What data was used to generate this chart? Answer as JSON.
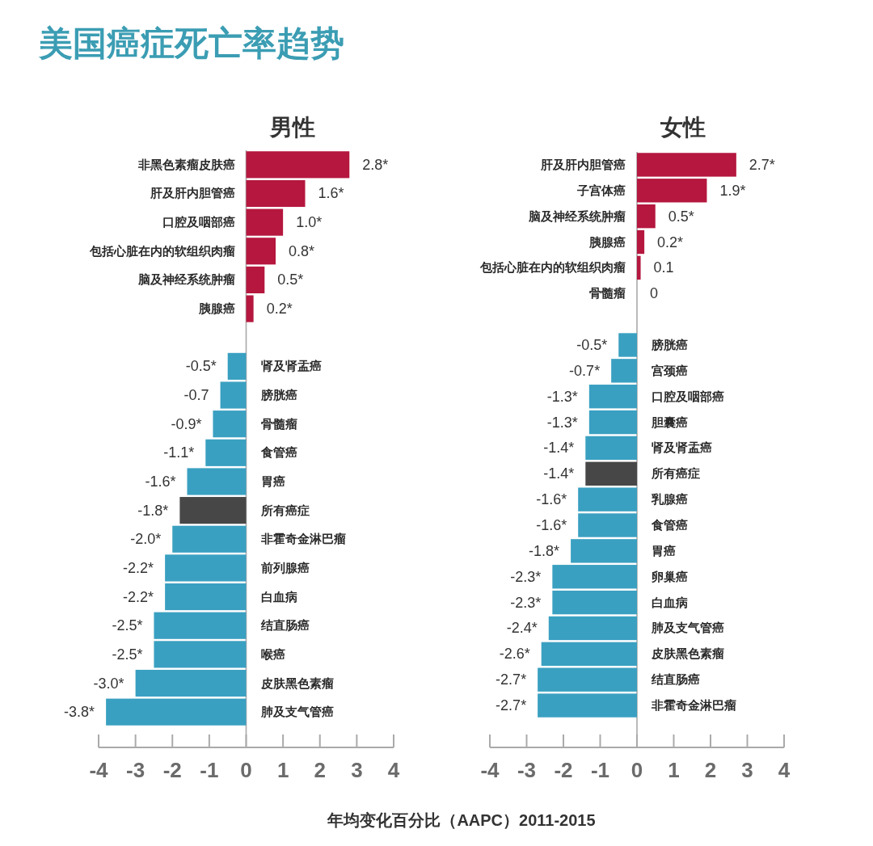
{
  "chart_data": [
    {
      "type": "other",
      "title": "美国癌症死亡率趋势",
      "annotations": [
        "年均变化百分比（AAPC）2011-2015"
      ]
    },
    {
      "type": "bar",
      "orientation": "horizontal",
      "title": "男性",
      "categories": [
        "非黑色素瘤皮肤癌",
        "肝及肝内胆管癌",
        "口腔及咽部癌",
        "包括心脏在内的软组织肉瘤",
        "脑及神经系统肿瘤",
        "胰腺癌",
        null,
        "肾及肾盂癌",
        "膀胱癌",
        "骨髓瘤",
        "食管癌",
        "胃癌",
        "所有癌症",
        "非霍奇金淋巴瘤",
        "前列腺癌",
        "白血病",
        "结直肠癌",
        "喉癌",
        "皮肤黑色素瘤",
        "肺及支气管癌"
      ],
      "values": [
        2.8,
        1.6,
        1.0,
        0.8,
        0.5,
        0.2,
        null,
        -0.5,
        -0.7,
        -0.9,
        -1.1,
        -1.6,
        -1.8,
        -2.0,
        -2.2,
        -2.2,
        -2.5,
        -2.5,
        -3.0,
        -3.8
      ],
      "value_labels": [
        "2.8*",
        "1.6*",
        "1.0*",
        "0.8*",
        "0.5*",
        "0.2*",
        null,
        "-0.5*",
        "-0.7",
        "-0.9*",
        "-1.1*",
        "-1.6*",
        "-1.8*",
        "-2.0*",
        "-2.2*",
        "-2.2*",
        "-2.5*",
        "-2.5*",
        "-3.0*",
        "-3.8*"
      ],
      "colors": [
        "#b5173e",
        "#b5173e",
        "#b5173e",
        "#b5173e",
        "#b5173e",
        "#b5173e",
        null,
        "#3aa0c1",
        "#3aa0c1",
        "#3aa0c1",
        "#3aa0c1",
        "#3aa0c1",
        "#474747",
        "#3aa0c1",
        "#3aa0c1",
        "#3aa0c1",
        "#3aa0c1",
        "#3aa0c1",
        "#3aa0c1",
        "#3aa0c1"
      ],
      "xlim": [
        -4,
        4
      ],
      "xticks": [
        -4,
        -3,
        -2,
        -1,
        0,
        1,
        2,
        3,
        4
      ]
    },
    {
      "type": "bar",
      "orientation": "horizontal",
      "title": "女性",
      "categories": [
        "肝及肝内胆管癌",
        "子宫体癌",
        "脑及神经系统肿瘤",
        "胰腺癌",
        "包括心脏在内的软组织肉瘤",
        "骨髓瘤",
        null,
        "膀胱癌",
        "宫颈癌",
        "口腔及咽部癌",
        "胆囊癌",
        "肾及肾盂癌",
        "所有癌症",
        "乳腺癌",
        "食管癌",
        "胃癌",
        "卵巢癌",
        "白血病",
        "肺及支气管癌",
        "皮肤黑色素瘤",
        "结直肠癌",
        "非霍奇金淋巴瘤"
      ],
      "values": [
        2.7,
        1.9,
        0.5,
        0.2,
        0.1,
        0,
        null,
        -0.5,
        -0.7,
        -1.3,
        -1.3,
        -1.4,
        -1.4,
        -1.6,
        -1.6,
        -1.8,
        -2.3,
        -2.3,
        -2.4,
        -2.6,
        -2.7,
        -2.7
      ],
      "value_labels": [
        "2.7*",
        "1.9*",
        "0.5*",
        "0.2*",
        "0.1",
        "0",
        null,
        "-0.5*",
        "-0.7*",
        "-1.3*",
        "-1.3*",
        "-1.4*",
        "-1.4*",
        "-1.6*",
        "-1.6*",
        "-1.8*",
        "-2.3*",
        "-2.3*",
        "-2.4*",
        "-2.6*",
        "-2.7*",
        "-2.7*"
      ],
      "colors": [
        "#b5173e",
        "#b5173e",
        "#b5173e",
        "#b5173e",
        "#b5173e",
        "#b5173e",
        null,
        "#3aa0c1",
        "#3aa0c1",
        "#3aa0c1",
        "#3aa0c1",
        "#3aa0c1",
        "#474747",
        "#3aa0c1",
        "#3aa0c1",
        "#3aa0c1",
        "#3aa0c1",
        "#3aa0c1",
        "#3aa0c1",
        "#3aa0c1",
        "#3aa0c1",
        "#3aa0c1"
      ],
      "xlim": [
        -4,
        4
      ],
      "xticks": [
        -4,
        -3,
        -2,
        -1,
        0,
        1,
        2,
        3,
        4
      ]
    }
  ]
}
